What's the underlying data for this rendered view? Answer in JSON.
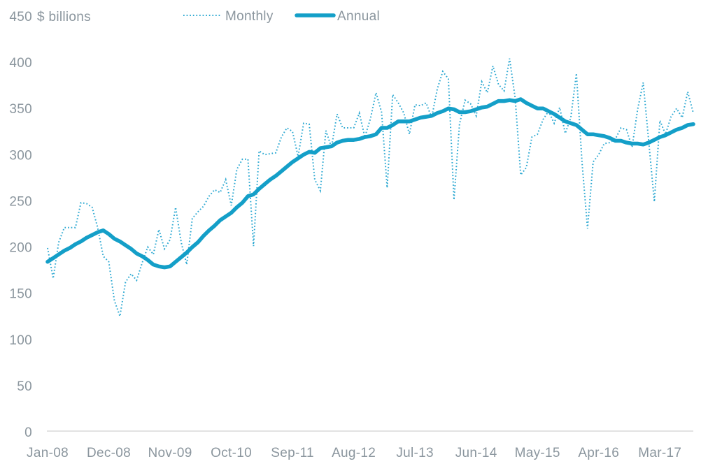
{
  "chart_data": {
    "type": "line",
    "title": "",
    "unit_label": "$ billions",
    "legend_position": "top",
    "grid": false,
    "y_axis": {
      "min": 0,
      "max": 450,
      "tick_interval": 50,
      "ticks": [
        0,
        50,
        100,
        150,
        200,
        250,
        300,
        350,
        400,
        450
      ]
    },
    "x_axis": {
      "start_month": "Jan-08",
      "end_month": "Sep-17",
      "tick_labels": [
        "Jan-08",
        "Dec-08",
        "Nov-09",
        "Oct-10",
        "Sep-11",
        "Aug-12",
        "Jul-13",
        "Jun-14",
        "May-15",
        "Apr-16",
        "Mar-17"
      ],
      "tick_month_indices": [
        0,
        11,
        22,
        33,
        44,
        55,
        66,
        77,
        88,
        99,
        110
      ]
    },
    "series": [
      {
        "name": "Monthly",
        "style": "dotted",
        "color": "#2ea9d2",
        "values": [
          199,
          166,
          205,
          221,
          221,
          221,
          248,
          247,
          243,
          221,
          190,
          184,
          142,
          125,
          162,
          171,
          164,
          183,
          200,
          192,
          219,
          198,
          208,
          243,
          205,
          181,
          231,
          238,
          244,
          255,
          262,
          259,
          273,
          245,
          284,
          295,
          295,
          201,
          304,
          300,
          301,
          302,
          319,
          329,
          325,
          298,
          334,
          333,
          273,
          261,
          326,
          308,
          344,
          329,
          329,
          329,
          345,
          319,
          339,
          367,
          346,
          264,
          365,
          356,
          345,
          322,
          354,
          353,
          356,
          340,
          371,
          390,
          382,
          251,
          333,
          359,
          355,
          342,
          379,
          367,
          396,
          376,
          369,
          404,
          361,
          278,
          286,
          319,
          322,
          338,
          347,
          334,
          351,
          323,
          340,
          388,
          292,
          220,
          292,
          300,
          312,
          313,
          317,
          329,
          327,
          308,
          349,
          378,
          314,
          249,
          337,
          322,
          341,
          350,
          340,
          368,
          345
        ]
      },
      {
        "name": "Annual",
        "style": "solid",
        "color": "#149fc8",
        "values": [
          184,
          188,
          192,
          196,
          199,
          203,
          206,
          210,
          213,
          216,
          218,
          214,
          209,
          206,
          202,
          198,
          193,
          190,
          186,
          181,
          179,
          178,
          179,
          184,
          189,
          194,
          200,
          205,
          212,
          218,
          223,
          229,
          233,
          237,
          243,
          248,
          255,
          257,
          263,
          268,
          273,
          277,
          282,
          287,
          292,
          296,
          300,
          303,
          302,
          307,
          308,
          309,
          313,
          315,
          316,
          316,
          317,
          319,
          320,
          322,
          329,
          329,
          332,
          336,
          336,
          336,
          338,
          340,
          341,
          342,
          345,
          347,
          350,
          349,
          346,
          346,
          347,
          349,
          351,
          352,
          355,
          358,
          358,
          359,
          358,
          360,
          356,
          353,
          350,
          350,
          347,
          344,
          340,
          336,
          334,
          332,
          327,
          322,
          322,
          321,
          320,
          318,
          315,
          315,
          313,
          312,
          312,
          311,
          313,
          316,
          319,
          321,
          324,
          327,
          329,
          332,
          333
        ]
      }
    ]
  },
  "colors": {
    "text": "#8b969e",
    "axis_line": "#d8d8d8",
    "background": "#ffffff"
  }
}
